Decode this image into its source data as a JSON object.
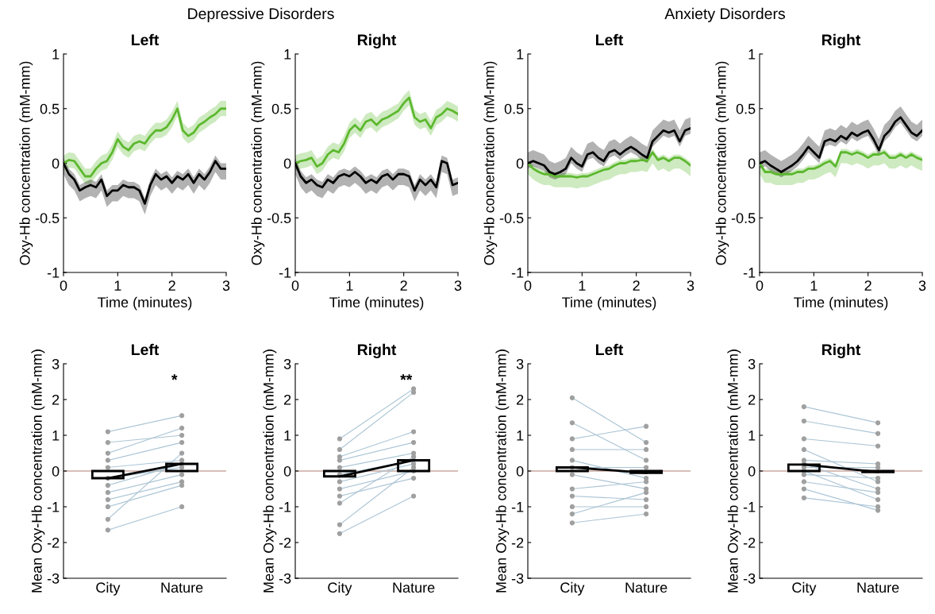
{
  "chart_data": [
    {
      "type": "line",
      "title": "Left",
      "xlabel": "Time (minutes)",
      "ylabel": "Oxy-Hb concentration (mM-mm)",
      "annotations": [
        "Depressive Disorders"
      ],
      "xlim": [
        0,
        3
      ],
      "xticks": [
        0,
        1,
        2,
        3
      ],
      "ylim": [
        -1,
        1
      ],
      "yticks": [
        -1,
        -0.5,
        0,
        0.5,
        1
      ],
      "grid": false,
      "x": [
        0,
        0.1,
        0.2,
        0.3,
        0.4,
        0.5,
        0.6,
        0.7,
        0.8,
        0.9,
        1.0,
        1.1,
        1.2,
        1.3,
        1.4,
        1.5,
        1.6,
        1.7,
        1.8,
        1.9,
        2.0,
        2.1,
        2.2,
        2.3,
        2.4,
        2.5,
        2.6,
        2.7,
        2.8,
        2.9,
        3.0
      ],
      "series": [
        {
          "color": "#5cb82e",
          "values": [
            0,
            0.03,
            0.02,
            -0.05,
            -0.12,
            -0.12,
            -0.05,
            0.0,
            0.02,
            0.1,
            0.22,
            0.15,
            0.12,
            0.18,
            0.2,
            0.18,
            0.25,
            0.3,
            0.3,
            0.33,
            0.4,
            0.5,
            0.3,
            0.25,
            0.28,
            0.35,
            0.38,
            0.42,
            0.45,
            0.5,
            0.5
          ],
          "lower": [
            -0.07,
            -0.04,
            -0.05,
            -0.12,
            -0.19,
            -0.19,
            -0.12,
            -0.07,
            -0.05,
            0.03,
            0.15,
            0.08,
            0.05,
            0.11,
            0.13,
            0.11,
            0.18,
            0.23,
            0.23,
            0.26,
            0.33,
            0.43,
            0.23,
            0.18,
            0.21,
            0.28,
            0.31,
            0.35,
            0.38,
            0.43,
            0.43
          ],
          "upper": [
            0.07,
            0.1,
            0.09,
            0.02,
            -0.05,
            -0.05,
            0.02,
            0.07,
            0.09,
            0.17,
            0.29,
            0.22,
            0.19,
            0.25,
            0.27,
            0.25,
            0.32,
            0.37,
            0.37,
            0.4,
            0.47,
            0.57,
            0.37,
            0.32,
            0.35,
            0.42,
            0.45,
            0.49,
            0.52,
            0.57,
            0.57
          ]
        },
        {
          "color": "#000000",
          "values": [
            0,
            -0.1,
            -0.15,
            -0.25,
            -0.22,
            -0.2,
            -0.22,
            -0.15,
            -0.3,
            -0.25,
            -0.25,
            -0.2,
            -0.22,
            -0.22,
            -0.25,
            -0.37,
            -0.2,
            -0.1,
            -0.15,
            -0.12,
            -0.18,
            -0.12,
            -0.15,
            -0.1,
            -0.18,
            -0.1,
            -0.15,
            -0.08,
            0.02,
            -0.05,
            -0.05
          ],
          "lower": [
            -0.1,
            -0.2,
            -0.25,
            -0.35,
            -0.32,
            -0.3,
            -0.32,
            -0.25,
            -0.4,
            -0.35,
            -0.35,
            -0.3,
            -0.32,
            -0.32,
            -0.35,
            -0.47,
            -0.3,
            -0.2,
            -0.25,
            -0.22,
            -0.28,
            -0.22,
            -0.25,
            -0.2,
            -0.28,
            -0.2,
            -0.25,
            -0.18,
            -0.08,
            -0.15,
            -0.15
          ],
          "upper": [
            0.05,
            -0.05,
            -0.1,
            -0.2,
            -0.17,
            -0.15,
            -0.17,
            -0.1,
            -0.25,
            -0.2,
            -0.2,
            -0.15,
            -0.17,
            -0.17,
            -0.2,
            -0.32,
            -0.15,
            -0.05,
            -0.1,
            -0.07,
            -0.13,
            -0.07,
            -0.1,
            -0.05,
            -0.13,
            -0.05,
            -0.1,
            -0.03,
            0.07,
            0,
            0
          ]
        }
      ]
    },
    {
      "type": "line",
      "title": "Right",
      "xlabel": "Time (minutes)",
      "ylabel": "Oxy-Hb concentration (mM-mm)",
      "xlim": [
        0,
        3
      ],
      "xticks": [
        0,
        1,
        2,
        3
      ],
      "ylim": [
        -1,
        1
      ],
      "yticks": [
        -1,
        -0.5,
        0,
        0.5,
        1
      ],
      "grid": false,
      "x": [
        0,
        0.1,
        0.2,
        0.3,
        0.4,
        0.5,
        0.6,
        0.7,
        0.8,
        0.9,
        1.0,
        1.1,
        1.2,
        1.3,
        1.4,
        1.5,
        1.6,
        1.7,
        1.8,
        1.9,
        2.0,
        2.1,
        2.2,
        2.3,
        2.4,
        2.5,
        2.6,
        2.7,
        2.8,
        2.9,
        3.0
      ],
      "series": [
        {
          "color": "#5cb82e",
          "values": [
            0,
            0.02,
            0.03,
            0.05,
            -0.03,
            0.0,
            0.08,
            0.12,
            0.1,
            0.18,
            0.3,
            0.35,
            0.3,
            0.38,
            0.4,
            0.35,
            0.4,
            0.42,
            0.45,
            0.48,
            0.55,
            0.6,
            0.42,
            0.38,
            0.4,
            0.32,
            0.42,
            0.45,
            0.5,
            0.48,
            0.45
          ],
          "lower": [
            -0.07,
            -0.05,
            -0.04,
            -0.02,
            -0.1,
            -0.07,
            0.01,
            0.05,
            0.03,
            0.11,
            0.23,
            0.28,
            0.23,
            0.31,
            0.33,
            0.28,
            0.33,
            0.35,
            0.38,
            0.41,
            0.48,
            0.53,
            0.35,
            0.31,
            0.33,
            0.25,
            0.35,
            0.38,
            0.43,
            0.41,
            0.38
          ],
          "upper": [
            0.07,
            0.09,
            0.1,
            0.12,
            0.04,
            0.07,
            0.15,
            0.19,
            0.17,
            0.25,
            0.37,
            0.42,
            0.37,
            0.45,
            0.47,
            0.42,
            0.47,
            0.49,
            0.52,
            0.55,
            0.62,
            0.67,
            0.49,
            0.45,
            0.47,
            0.39,
            0.49,
            0.52,
            0.57,
            0.55,
            0.52
          ]
        },
        {
          "color": "#000000",
          "values": [
            0,
            -0.12,
            -0.18,
            -0.15,
            -0.2,
            -0.22,
            -0.15,
            -0.18,
            -0.12,
            -0.1,
            -0.12,
            -0.08,
            -0.12,
            -0.18,
            -0.15,
            -0.18,
            -0.12,
            -0.1,
            -0.15,
            -0.1,
            -0.1,
            -0.12,
            -0.25,
            -0.15,
            -0.2,
            -0.15,
            -0.22,
            0.02,
            0.0,
            -0.2,
            -0.18
          ],
          "lower": [
            -0.1,
            -0.22,
            -0.28,
            -0.25,
            -0.3,
            -0.32,
            -0.25,
            -0.28,
            -0.22,
            -0.2,
            -0.22,
            -0.18,
            -0.22,
            -0.28,
            -0.25,
            -0.28,
            -0.22,
            -0.2,
            -0.25,
            -0.2,
            -0.2,
            -0.22,
            -0.35,
            -0.25,
            -0.3,
            -0.25,
            -0.32,
            -0.08,
            -0.1,
            -0.3,
            -0.28
          ],
          "upper": [
            0.05,
            -0.07,
            -0.13,
            -0.1,
            -0.15,
            -0.17,
            -0.1,
            -0.13,
            -0.07,
            -0.05,
            -0.07,
            -0.03,
            -0.07,
            -0.13,
            -0.1,
            -0.13,
            -0.07,
            -0.05,
            -0.1,
            -0.05,
            -0.05,
            -0.07,
            -0.2,
            -0.1,
            -0.15,
            -0.1,
            -0.17,
            0.07,
            0.05,
            -0.15,
            -0.13
          ]
        }
      ]
    },
    {
      "type": "line",
      "title": "Left",
      "xlabel": "Time (minutes)",
      "ylabel": "Oxy-Hb concentration (mM-mm)",
      "annotations": [
        "Anxiety Disorders"
      ],
      "xlim": [
        0,
        3
      ],
      "xticks": [
        0,
        1,
        2,
        3
      ],
      "ylim": [
        -1,
        1
      ],
      "yticks": [
        -1,
        -0.5,
        0,
        0.5,
        1
      ],
      "grid": false,
      "x": [
        0,
        0.1,
        0.2,
        0.3,
        0.4,
        0.5,
        0.6,
        0.7,
        0.8,
        0.9,
        1.0,
        1.1,
        1.2,
        1.3,
        1.4,
        1.5,
        1.6,
        1.7,
        1.8,
        1.9,
        2.0,
        2.1,
        2.2,
        2.3,
        2.4,
        2.5,
        2.6,
        2.7,
        2.8,
        2.9,
        3.0
      ],
      "series": [
        {
          "color": "#5cb82e",
          "values": [
            0,
            -0.05,
            -0.08,
            -0.1,
            -0.1,
            -0.12,
            -0.12,
            -0.12,
            -0.12,
            -0.13,
            -0.12,
            -0.12,
            -0.1,
            -0.08,
            -0.06,
            -0.05,
            -0.02,
            0.0,
            0.0,
            0.02,
            0.02,
            0.03,
            0.02,
            0.1,
            0.03,
            0.05,
            0.02,
            0.05,
            0.05,
            0.02,
            -0.02
          ],
          "lower": [
            -0.1,
            -0.15,
            -0.18,
            -0.2,
            -0.2,
            -0.22,
            -0.22,
            -0.22,
            -0.22,
            -0.23,
            -0.22,
            -0.22,
            -0.2,
            -0.18,
            -0.16,
            -0.15,
            -0.12,
            -0.1,
            -0.1,
            -0.08,
            -0.08,
            -0.07,
            -0.08,
            0.0,
            -0.07,
            -0.05,
            -0.08,
            -0.05,
            -0.05,
            -0.08,
            -0.12
          ],
          "upper": [
            0.03,
            -0.02,
            -0.05,
            -0.07,
            -0.07,
            -0.09,
            -0.09,
            -0.09,
            -0.09,
            -0.1,
            -0.09,
            -0.09,
            -0.07,
            -0.05,
            -0.03,
            -0.02,
            0.01,
            0.03,
            0.03,
            0.05,
            0.05,
            0.06,
            0.05,
            0.13,
            0.06,
            0.08,
            0.05,
            0.08,
            0.08,
            0.05,
            0.01
          ]
        },
        {
          "color": "#000000",
          "values": [
            0,
            0.02,
            0.0,
            -0.02,
            -0.08,
            -0.1,
            -0.08,
            -0.05,
            0.05,
            0.0,
            -0.03,
            0.08,
            0.1,
            0.05,
            0.02,
            0.1,
            0.12,
            0.08,
            0.12,
            0.15,
            0.12,
            0.08,
            0.05,
            0.2,
            0.25,
            0.3,
            0.28,
            0.3,
            0.2,
            0.3,
            0.32
          ],
          "lower": [
            -0.05,
            -0.03,
            -0.05,
            -0.07,
            -0.13,
            -0.15,
            -0.13,
            -0.1,
            0.0,
            -0.05,
            -0.08,
            0.03,
            0.05,
            0.0,
            -0.03,
            0.05,
            0.07,
            0.03,
            0.07,
            0.1,
            0.07,
            0.03,
            0.0,
            0.15,
            0.2,
            0.25,
            0.23,
            0.25,
            0.15,
            0.25,
            0.27
          ],
          "upper": [
            0.1,
            0.12,
            0.1,
            0.08,
            0.02,
            0.0,
            0.02,
            0.05,
            0.15,
            0.1,
            0.07,
            0.18,
            0.2,
            0.15,
            0.12,
            0.2,
            0.22,
            0.18,
            0.22,
            0.25,
            0.22,
            0.18,
            0.15,
            0.3,
            0.35,
            0.4,
            0.38,
            0.4,
            0.3,
            0.4,
            0.42
          ]
        }
      ]
    },
    {
      "type": "line",
      "title": "Right",
      "xlabel": "Time (minutes)",
      "ylabel": "Oxy-Hb concentration (mM-mm)",
      "xlim": [
        0,
        3
      ],
      "xticks": [
        0,
        1,
        2,
        3
      ],
      "ylim": [
        -1,
        1
      ],
      "yticks": [
        -1,
        -0.5,
        0,
        0.5,
        1
      ],
      "grid": false,
      "x": [
        0,
        0.1,
        0.2,
        0.3,
        0.4,
        0.5,
        0.6,
        0.7,
        0.8,
        0.9,
        1.0,
        1.1,
        1.2,
        1.3,
        1.4,
        1.5,
        1.6,
        1.7,
        1.8,
        1.9,
        2.0,
        2.1,
        2.2,
        2.3,
        2.4,
        2.5,
        2.6,
        2.7,
        2.8,
        2.9,
        3.0
      ],
      "series": [
        {
          "color": "#5cb82e",
          "values": [
            0,
            -0.08,
            -0.08,
            -0.1,
            -0.1,
            -0.1,
            -0.1,
            -0.08,
            -0.08,
            -0.05,
            -0.05,
            -0.03,
            0.0,
            0.02,
            -0.03,
            0.1,
            0.1,
            0.08,
            0.1,
            0.08,
            0.05,
            0.08,
            0.08,
            0.1,
            0.05,
            0.05,
            0.08,
            0.05,
            0.08,
            0.05,
            0.03
          ],
          "lower": [
            -0.1,
            -0.18,
            -0.18,
            -0.2,
            -0.2,
            -0.2,
            -0.2,
            -0.18,
            -0.18,
            -0.15,
            -0.15,
            -0.13,
            -0.1,
            -0.08,
            -0.13,
            0.0,
            0.0,
            -0.02,
            0.0,
            -0.02,
            -0.05,
            -0.02,
            -0.02,
            0.0,
            -0.05,
            -0.05,
            -0.02,
            -0.05,
            -0.02,
            -0.05,
            -0.07
          ],
          "upper": [
            0.03,
            -0.05,
            -0.05,
            -0.07,
            -0.07,
            -0.07,
            -0.07,
            -0.05,
            -0.05,
            -0.02,
            -0.02,
            0.0,
            0.03,
            0.05,
            0.0,
            0.13,
            0.13,
            0.11,
            0.13,
            0.11,
            0.08,
            0.11,
            0.11,
            0.13,
            0.08,
            0.08,
            0.11,
            0.08,
            0.11,
            0.08,
            0.06
          ]
        },
        {
          "color": "#000000",
          "values": [
            0,
            0.02,
            -0.02,
            -0.05,
            -0.08,
            -0.05,
            -0.02,
            0.02,
            0.08,
            0.15,
            0.1,
            0.05,
            0.2,
            0.22,
            0.2,
            0.25,
            0.22,
            0.28,
            0.25,
            0.28,
            0.3,
            0.22,
            0.12,
            0.25,
            0.3,
            0.38,
            0.42,
            0.35,
            0.28,
            0.25,
            0.3
          ],
          "lower": [
            -0.05,
            -0.03,
            -0.07,
            -0.1,
            -0.13,
            -0.1,
            -0.07,
            -0.03,
            0.03,
            0.1,
            0.05,
            0.0,
            0.15,
            0.17,
            0.15,
            0.2,
            0.17,
            0.23,
            0.2,
            0.23,
            0.25,
            0.17,
            0.07,
            0.2,
            0.25,
            0.33,
            0.37,
            0.3,
            0.23,
            0.2,
            0.25
          ],
          "upper": [
            0.1,
            0.12,
            0.08,
            0.05,
            0.02,
            0.05,
            0.08,
            0.12,
            0.18,
            0.25,
            0.2,
            0.15,
            0.3,
            0.32,
            0.3,
            0.35,
            0.32,
            0.38,
            0.35,
            0.38,
            0.4,
            0.32,
            0.22,
            0.35,
            0.4,
            0.48,
            0.52,
            0.45,
            0.38,
            0.35,
            0.4
          ]
        }
      ]
    },
    {
      "type": "bar",
      "title": "Left",
      "ylabel": "Mean Oxy-Hb concentration (mM-mm)",
      "categories": [
        "City",
        "Nature"
      ],
      "ylim": [
        -3,
        3
      ],
      "yticks": [
        -3,
        -2,
        -1,
        0,
        1,
        2,
        3
      ],
      "grid": false,
      "ref_lines": [
        {
          "axis": "y",
          "value": 0,
          "color": "#c8a8a0"
        }
      ],
      "annotations": [
        "*"
      ],
      "series": [
        {
          "type": "line",
          "marker": "circle",
          "color": "#aac4d4",
          "values": [
            1.1,
            1.55
          ]
        },
        {
          "type": "line",
          "marker": "circle",
          "color": "#aac4d4",
          "values": [
            0.8,
            1.0
          ]
        },
        {
          "type": "line",
          "marker": "circle",
          "color": "#aac4d4",
          "values": [
            0.5,
            1.2
          ]
        },
        {
          "type": "line",
          "marker": "circle",
          "color": "#aac4d4",
          "values": [
            0.3,
            0.8
          ]
        },
        {
          "type": "line",
          "marker": "circle",
          "color": "#aac4d4",
          "values": [
            0.1,
            0.3
          ]
        },
        {
          "type": "line",
          "marker": "circle",
          "color": "#aac4d4",
          "values": [
            -0.2,
            0.1
          ]
        },
        {
          "type": "line",
          "marker": "circle",
          "color": "#aac4d4",
          "values": [
            -0.4,
            0.2
          ]
        },
        {
          "type": "line",
          "marker": "circle",
          "color": "#aac4d4",
          "values": [
            -0.6,
            -0.1
          ]
        },
        {
          "type": "line",
          "marker": "circle",
          "color": "#aac4d4",
          "values": [
            -0.8,
            -0.3
          ]
        },
        {
          "type": "line",
          "marker": "circle",
          "color": "#aac4d4",
          "values": [
            -1.0,
            -0.4
          ]
        },
        {
          "type": "line",
          "marker": "circle",
          "color": "#aac4d4",
          "values": [
            -1.35,
            0.5
          ]
        },
        {
          "type": "line",
          "marker": "circle",
          "color": "#aac4d4",
          "values": [
            -1.65,
            -1.0
          ]
        },
        {
          "type": "bar",
          "color": "#000000",
          "values": [
            -0.2,
            0.2
          ]
        },
        {
          "type": "line",
          "marker": "none",
          "color": "#000000",
          "values": [
            -0.2,
            0.2
          ]
        }
      ]
    },
    {
      "type": "bar",
      "title": "Right",
      "ylabel": "Mean Oxy-Hb concentration (mM-mm)",
      "categories": [
        "City",
        "Nature"
      ],
      "ylim": [
        -3,
        3
      ],
      "yticks": [
        -3,
        -2,
        -1,
        0,
        1,
        2,
        3
      ],
      "grid": false,
      "ref_lines": [
        {
          "axis": "y",
          "value": 0,
          "color": "#c8a8a0"
        }
      ],
      "annotations": [
        "**"
      ],
      "series": [
        {
          "type": "line",
          "marker": "circle",
          "color": "#aac4d4",
          "values": [
            0.9,
            2.3
          ]
        },
        {
          "type": "line",
          "marker": "circle",
          "color": "#aac4d4",
          "values": [
            0.6,
            2.2
          ]
        },
        {
          "type": "line",
          "marker": "circle",
          "color": "#aac4d4",
          "values": [
            0.4,
            1.1
          ]
        },
        {
          "type": "line",
          "marker": "circle",
          "color": "#aac4d4",
          "values": [
            0.3,
            0.8
          ]
        },
        {
          "type": "line",
          "marker": "circle",
          "color": "#aac4d4",
          "values": [
            0.1,
            0.5
          ]
        },
        {
          "type": "line",
          "marker": "circle",
          "color": "#aac4d4",
          "values": [
            -0.1,
            0.3
          ]
        },
        {
          "type": "line",
          "marker": "circle",
          "color": "#aac4d4",
          "values": [
            -0.3,
            0.2
          ]
        },
        {
          "type": "line",
          "marker": "circle",
          "color": "#aac4d4",
          "values": [
            -0.5,
            0.0
          ]
        },
        {
          "type": "line",
          "marker": "circle",
          "color": "#aac4d4",
          "values": [
            -0.7,
            -0.2
          ]
        },
        {
          "type": "line",
          "marker": "circle",
          "color": "#aac4d4",
          "values": [
            -0.9,
            0.4
          ]
        },
        {
          "type": "line",
          "marker": "circle",
          "color": "#aac4d4",
          "values": [
            -1.5,
            0.1
          ]
        },
        {
          "type": "line",
          "marker": "circle",
          "color": "#aac4d4",
          "values": [
            -1.75,
            -0.7
          ]
        },
        {
          "type": "bar",
          "color": "#000000",
          "values": [
            -0.15,
            0.3
          ]
        },
        {
          "type": "line",
          "marker": "none",
          "color": "#000000",
          "values": [
            -0.15,
            0.3
          ]
        }
      ]
    },
    {
      "type": "bar",
      "title": "Left",
      "ylabel": "Mean Oxy-Hb concentration (mM-mm)",
      "categories": [
        "City",
        "Nature"
      ],
      "ylim": [
        -3,
        3
      ],
      "yticks": [
        -3,
        -2,
        -1,
        0,
        1,
        2,
        3
      ],
      "grid": false,
      "ref_lines": [
        {
          "axis": "y",
          "value": 0,
          "color": "#c8a8a0"
        }
      ],
      "series": [
        {
          "type": "line",
          "marker": "circle",
          "color": "#aac4d4",
          "values": [
            2.05,
            0.8
          ]
        },
        {
          "type": "line",
          "marker": "circle",
          "color": "#aac4d4",
          "values": [
            1.35,
            0.3
          ]
        },
        {
          "type": "line",
          "marker": "circle",
          "color": "#aac4d4",
          "values": [
            0.9,
            1.25
          ]
        },
        {
          "type": "line",
          "marker": "circle",
          "color": "#aac4d4",
          "values": [
            0.6,
            0.6
          ]
        },
        {
          "type": "line",
          "marker": "circle",
          "color": "#aac4d4",
          "values": [
            0.3,
            -0.2
          ]
        },
        {
          "type": "line",
          "marker": "circle",
          "color": "#aac4d4",
          "values": [
            0.1,
            0.1
          ]
        },
        {
          "type": "line",
          "marker": "circle",
          "color": "#aac4d4",
          "values": [
            -0.1,
            -0.5
          ]
        },
        {
          "type": "line",
          "marker": "circle",
          "color": "#aac4d4",
          "values": [
            -0.5,
            -0.3
          ]
        },
        {
          "type": "line",
          "marker": "circle",
          "color": "#aac4d4",
          "values": [
            -0.7,
            -0.8
          ]
        },
        {
          "type": "line",
          "marker": "circle",
          "color": "#aac4d4",
          "values": [
            -1.0,
            -1.0
          ]
        },
        {
          "type": "line",
          "marker": "circle",
          "color": "#aac4d4",
          "values": [
            -1.2,
            -0.6
          ]
        },
        {
          "type": "line",
          "marker": "circle",
          "color": "#aac4d4",
          "values": [
            -1.45,
            -1.2
          ]
        },
        {
          "type": "bar",
          "color": "#000000",
          "values": [
            0.1,
            -0.05
          ]
        },
        {
          "type": "line",
          "marker": "none",
          "color": "#000000",
          "values": [
            0.1,
            -0.05
          ]
        }
      ]
    },
    {
      "type": "bar",
      "title": "Right",
      "ylabel": "Mean Oxy-Hb concentration (mM-mm)",
      "categories": [
        "City",
        "Nature"
      ],
      "ylim": [
        -3,
        3
      ],
      "yticks": [
        -3,
        -2,
        -1,
        0,
        1,
        2,
        3
      ],
      "grid": false,
      "ref_lines": [
        {
          "axis": "y",
          "value": 0,
          "color": "#c8a8a0"
        }
      ],
      "series": [
        {
          "type": "line",
          "marker": "circle",
          "color": "#aac4d4",
          "values": [
            1.8,
            1.35
          ]
        },
        {
          "type": "line",
          "marker": "circle",
          "color": "#aac4d4",
          "values": [
            1.4,
            1.05
          ]
        },
        {
          "type": "line",
          "marker": "circle",
          "color": "#aac4d4",
          "values": [
            0.9,
            0.7
          ]
        },
        {
          "type": "line",
          "marker": "circle",
          "color": "#aac4d4",
          "values": [
            0.6,
            -0.3
          ]
        },
        {
          "type": "line",
          "marker": "circle",
          "color": "#aac4d4",
          "values": [
            0.3,
            0.2
          ]
        },
        {
          "type": "line",
          "marker": "circle",
          "color": "#aac4d4",
          "values": [
            0.2,
            -0.5
          ]
        },
        {
          "type": "line",
          "marker": "circle",
          "color": "#aac4d4",
          "values": [
            0.1,
            0.1
          ]
        },
        {
          "type": "line",
          "marker": "circle",
          "color": "#aac4d4",
          "values": [
            0.0,
            -0.8
          ]
        },
        {
          "type": "line",
          "marker": "circle",
          "color": "#aac4d4",
          "values": [
            -0.1,
            -0.2
          ]
        },
        {
          "type": "line",
          "marker": "circle",
          "color": "#aac4d4",
          "values": [
            -0.3,
            -0.6
          ]
        },
        {
          "type": "line",
          "marker": "circle",
          "color": "#aac4d4",
          "values": [
            -0.5,
            -1.1
          ]
        },
        {
          "type": "line",
          "marker": "circle",
          "color": "#aac4d4",
          "values": [
            -0.75,
            -1.0
          ]
        },
        {
          "type": "bar",
          "color": "#000000",
          "values": [
            0.18,
            -0.03
          ]
        },
        {
          "type": "line",
          "marker": "none",
          "color": "#000000",
          "values": [
            0.18,
            -0.03
          ]
        }
      ]
    }
  ]
}
